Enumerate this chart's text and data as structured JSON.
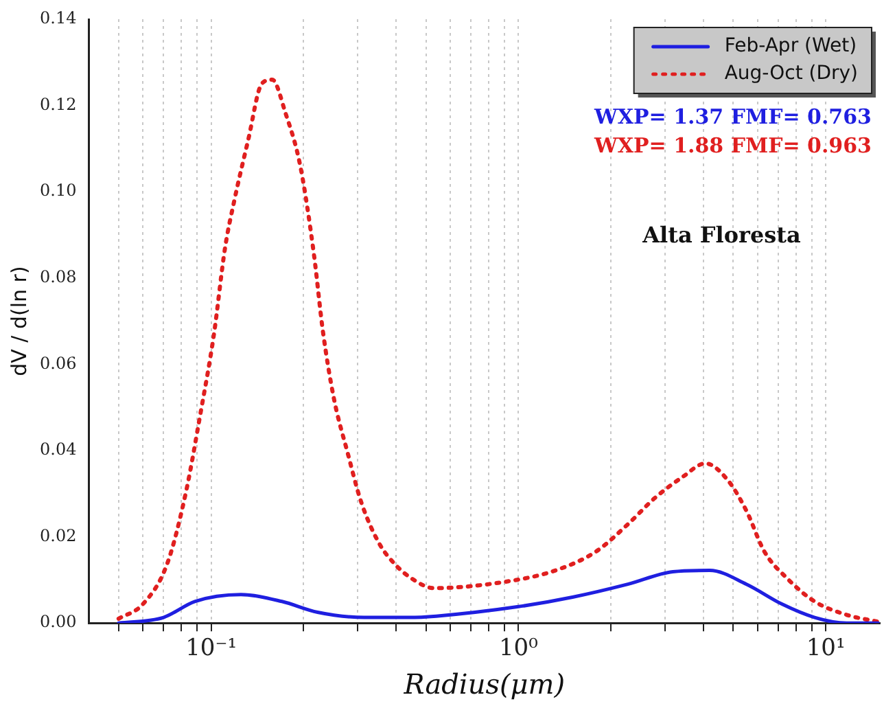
{
  "chart_data": {
    "type": "line",
    "xlabel": "Radius(μm)",
    "ylabel": "dV / d(ln r)",
    "log": "x",
    "xlim": [
      0.04,
      15
    ],
    "ylim": [
      0,
      0.14
    ],
    "xticks": [
      {
        "value": 0.05,
        "label": null
      },
      {
        "value": 0.06,
        "label": null
      },
      {
        "value": 0.07,
        "label": null
      },
      {
        "value": 0.08,
        "label": null
      },
      {
        "value": 0.09,
        "label": null
      },
      {
        "value": 0.1,
        "label": "10⁻¹"
      },
      {
        "value": 0.2,
        "label": null
      },
      {
        "value": 0.3,
        "label": null
      },
      {
        "value": 0.4,
        "label": null
      },
      {
        "value": 0.5,
        "label": null
      },
      {
        "value": 0.6,
        "label": null
      },
      {
        "value": 0.7,
        "label": null
      },
      {
        "value": 0.8,
        "label": null
      },
      {
        "value": 0.9,
        "label": null
      },
      {
        "value": 1,
        "label": "10⁰"
      },
      {
        "value": 2,
        "label": null
      },
      {
        "value": 3,
        "label": null
      },
      {
        "value": 4,
        "label": null
      },
      {
        "value": 5,
        "label": null
      },
      {
        "value": 6,
        "label": null
      },
      {
        "value": 7,
        "label": null
      },
      {
        "value": 8,
        "label": null
      },
      {
        "value": 9,
        "label": null
      },
      {
        "value": 10,
        "label": "10¹"
      }
    ],
    "yticks": [
      {
        "value": 0,
        "label": "0.00"
      },
      {
        "value": 0.02,
        "label": "0.02"
      },
      {
        "value": 0.04,
        "label": "0.04"
      },
      {
        "value": 0.06,
        "label": "0.06"
      },
      {
        "value": 0.08,
        "label": "0.08"
      },
      {
        "value": 0.1,
        "label": "0.10"
      },
      {
        "value": 0.12,
        "label": "0.12"
      },
      {
        "value": 0.14,
        "label": "0.14"
      }
    ],
    "grid": "x",
    "legend": "top right",
    "marker": "none",
    "series": [
      {
        "name": "Feb-Apr (Wet)",
        "color": "#1f1fe0",
        "line_style": "solid",
        "x": [
          0.05,
          0.07,
          0.0885,
          0.125,
          0.17,
          0.222,
          0.315,
          0.44,
          0.54,
          1.0,
          1.5,
          2.27,
          3.18,
          4.19,
          5.52,
          7.2,
          9.2,
          11.7,
          14.8
        ],
        "values": [
          0,
          0.0013,
          0.005,
          0.0066,
          0.005,
          0.0025,
          0.0013,
          0.0013,
          0.0016,
          0.0038,
          0.006,
          0.009,
          0.0119,
          0.0122,
          0.009,
          0.0044,
          0.0013,
          0,
          0
        ]
      },
      {
        "name": "Aug-Oct (Dry)",
        "color": "#e01f1f",
        "line_style": "dotted",
        "x": [
          0.05,
          0.06,
          0.072,
          0.083,
          0.092,
          0.102,
          0.111,
          0.119,
          0.132,
          0.146,
          0.158,
          0.175,
          0.195,
          0.216,
          0.231,
          0.251,
          0.278,
          0.308,
          0.352,
          0.398,
          0.45,
          0.53,
          0.93,
          1.32,
          1.79,
          2.27,
          2.78,
          3.41,
          4.06,
          4.79,
          5.52,
          6.31,
          7.5,
          9.2,
          11.7,
          14.8
        ],
        "values": [
          0.001,
          0.0044,
          0.0138,
          0.0307,
          0.048,
          0.0667,
          0.087,
          0.098,
          0.112,
          0.125,
          0.126,
          0.118,
          0.106,
          0.0855,
          0.0677,
          0.052,
          0.0395,
          0.028,
          0.0185,
          0.0135,
          0.0103,
          0.0081,
          0.0097,
          0.0122,
          0.0166,
          0.0229,
          0.029,
          0.0338,
          0.037,
          0.0332,
          0.026,
          0.0166,
          0.0103,
          0.005,
          0.0019,
          0.0003
        ]
      }
    ],
    "annotations": [
      "WXP= 1.37 FMF= 0.763",
      "WXP= 1.88 FMF= 0.963",
      "Alta Floresta"
    ]
  }
}
